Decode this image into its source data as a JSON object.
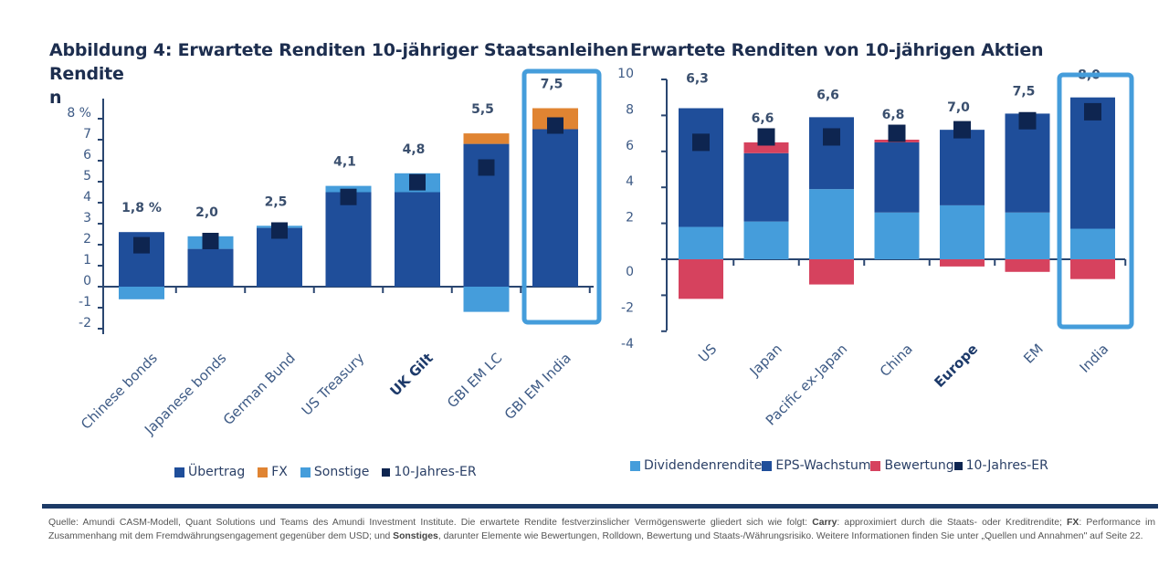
{
  "chart_data": [
    {
      "type": "bar",
      "stacked": true,
      "title": "Abbildung 4: Erwartete Renditen 10-jähriger Staatsanleihen",
      "ylabel": "Rendite n",
      "ylim": [
        -2,
        8
      ],
      "yticks": [
        "-2",
        "-1",
        "0",
        "1",
        "2",
        "3",
        "4",
        "5",
        "6",
        "7",
        "8 %"
      ],
      "categories": [
        "Chinese bonds",
        "Japanese bonds",
        "German Bund",
        "US Treasury",
        "UK Gilt",
        "GBI EM LC",
        "GBI EM India"
      ],
      "bold_categories": [
        "UK Gilt"
      ],
      "highlighted_category": "GBI EM India",
      "series": [
        {
          "name": "Übertrag",
          "color": "#1f4e9a",
          "values": [
            2.6,
            1.8,
            2.8,
            4.5,
            4.5,
            6.8,
            7.5
          ]
        },
        {
          "name": "FX",
          "color": "#e08432",
          "values": [
            0,
            0,
            0,
            0,
            0,
            0.5,
            1.0
          ]
        },
        {
          "name": "Sonstige",
          "color": "#459ddb",
          "values": [
            -0.6,
            0.6,
            0.1,
            0.3,
            0.9,
            -1.2,
            0
          ]
        },
        {
          "name": "10-Jahres-ER",
          "color": "#0e2550",
          "marker": "square",
          "values": [
            1.8,
            2.0,
            2.5,
            4.1,
            4.8,
            5.5,
            7.5
          ]
        }
      ],
      "data_labels": [
        "1,8 %",
        "2,0",
        "2,5",
        "4,1",
        "4,8",
        "5,5",
        "7,5"
      ],
      "legend": {
        "position": "bottom",
        "items": [
          "Übertrag",
          "FX",
          "Sonstige",
          "10-Jahres-ER"
        ]
      }
    },
    {
      "type": "bar",
      "stacked": true,
      "title": "Erwartete Renditen von 10-jährigen Aktien",
      "ylim": [
        -4,
        10
      ],
      "yticks": [
        "-4",
        "-2",
        "0",
        "2",
        "4",
        "6",
        "8",
        "10"
      ],
      "categories": [
        "US",
        "Japan",
        "Pacific ex-Japan",
        "China",
        "Europe",
        "EM",
        "India"
      ],
      "bold_categories": [
        "Europe"
      ],
      "highlighted_category": "India",
      "series": [
        {
          "name": "Dividendenrendite",
          "color": "#459ddb",
          "values": [
            1.8,
            2.1,
            3.9,
            2.6,
            3.0,
            2.6,
            1.7
          ]
        },
        {
          "name": "EPS-Wachstum",
          "color": "#1f4e9a",
          "values": [
            6.6,
            3.8,
            4.0,
            3.9,
            4.2,
            5.5,
            7.3
          ]
        },
        {
          "name": "Bewertung",
          "color": "#d6425e",
          "values": [
            -2.2,
            0.6,
            -1.4,
            0.15,
            -0.4,
            -0.7,
            -1.1
          ]
        },
        {
          "name": "10-Jahres-ER",
          "color": "#0e2550",
          "marker": "square",
          "values": [
            6.3,
            6.6,
            6.6,
            6.8,
            7.0,
            7.5,
            8.0
          ]
        }
      ],
      "data_labels": [
        "6,3",
        "6,6",
        "6,6",
        "6,8",
        "7,0",
        "7,5",
        "8,0"
      ],
      "legend": {
        "position": "bottom",
        "items": [
          "Dividendenrendite",
          "EPS-Wachstum",
          "Bewertung",
          "10-Jahres-ER"
        ]
      }
    }
  ],
  "titles": {
    "left": "Abbildung 4: Erwartete Renditen 10-jähriger Staatsanleihen",
    "left_ylabel_1": "Rendite",
    "left_ylabel_2": "n",
    "right": "Erwartete Renditen von 10-jährigen Aktien"
  },
  "footer": {
    "part1": "Quelle: Amundi CASM-Modell, Quant Solutions und Teams des Amundi Investment Institute. Die erwartete Rendite festverzinslicher Vermögenswerte gliedert sich wie folgt: ",
    "carry_label": "Carry",
    "part2": ": approximiert durch die Staats- oder Kreditrendite; ",
    "fx_label": "FX",
    "part3": ": Performance im Zusammenhang mit dem Fremdwährungsengagement gegenüber dem USD; und ",
    "sonstiges_label": "Sonstiges",
    "part4": ", darunter Elemente wie Bewertungen, Rolldown, Bewertung und Staats-/Währungsrisiko. Weitere Informationen finden Sie unter „Quellen und Annahmen\" auf Seite 22."
  },
  "colors": {
    "highlight_box": "#459ddb",
    "axis": "#2a4670",
    "rule": "#1c3a66"
  }
}
